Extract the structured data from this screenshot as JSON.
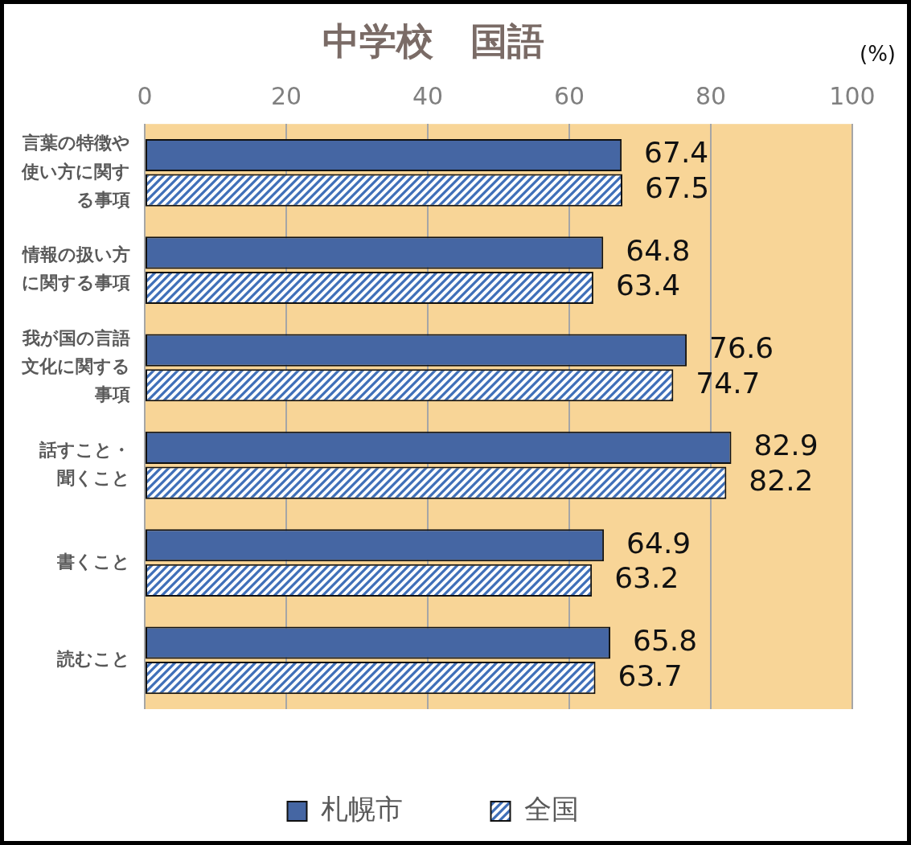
{
  "chart_data": {
    "type": "bar",
    "orientation": "horizontal",
    "title": "中学校　国語",
    "xlabel": "(%)",
    "categories": [
      [
        "言葉の特徴や",
        "使い方に関す",
        "る事項"
      ],
      [
        "情報の扱い方",
        "に関する事項"
      ],
      [
        "我が国の言語",
        "文化に関する",
        "事項"
      ],
      [
        "話すこと・",
        "聞くこと"
      ],
      [
        "書くこと"
      ],
      [
        "読むこと"
      ]
    ],
    "series": [
      {
        "name": "札幌市",
        "color": "#4566a3",
        "values": [
          67.4,
          64.8,
          76.6,
          82.9,
          64.9,
          65.8
        ]
      },
      {
        "name": "全国",
        "color": "#3f6fb8",
        "values": [
          67.5,
          63.4,
          74.7,
          82.2,
          63.2,
          63.7
        ]
      }
    ],
    "xlim": [
      0,
      100
    ],
    "xticks": [
      0,
      20,
      40,
      60,
      80,
      100
    ],
    "grid": true,
    "legend": "bottom",
    "data_labels": true
  }
}
